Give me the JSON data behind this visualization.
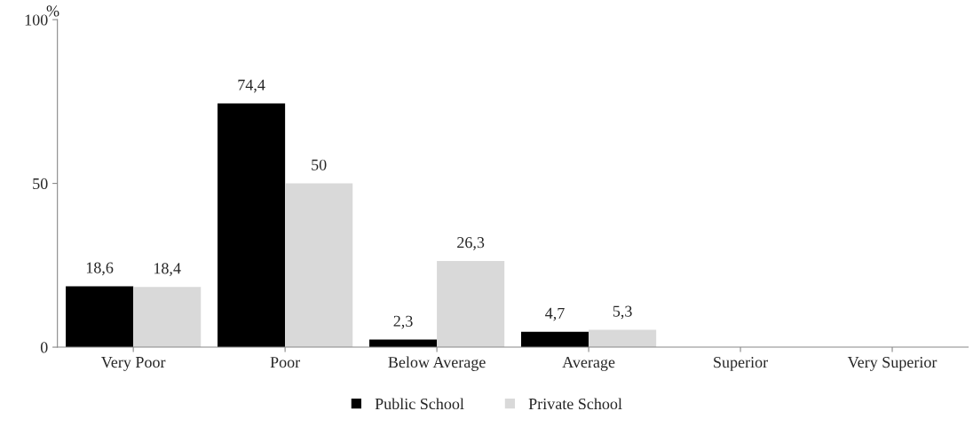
{
  "chart_data": {
    "type": "bar",
    "ylabel": "%",
    "categories": [
      "Very Poor",
      "Poor",
      "Below Average",
      "Average",
      "Superior",
      "Very Superior"
    ],
    "series": [
      {
        "name": "Public School",
        "color": "#000000",
        "values": [
          18.6,
          74.4,
          2.3,
          4.7,
          0,
          0
        ],
        "value_labels": [
          "18,6",
          "74,4",
          "2,3",
          "4,7",
          null,
          null
        ]
      },
      {
        "name": "Private School",
        "color": "#d9d9d9",
        "values": [
          18.4,
          50,
          26.3,
          5.3,
          0,
          0
        ],
        "value_labels": [
          "18,4",
          "50",
          "26,3",
          "5,3",
          null,
          null
        ]
      }
    ],
    "ylim": [
      0,
      100
    ],
    "yticks": [
      0,
      50,
      100
    ],
    "grid": false,
    "legend": "bottom"
  }
}
